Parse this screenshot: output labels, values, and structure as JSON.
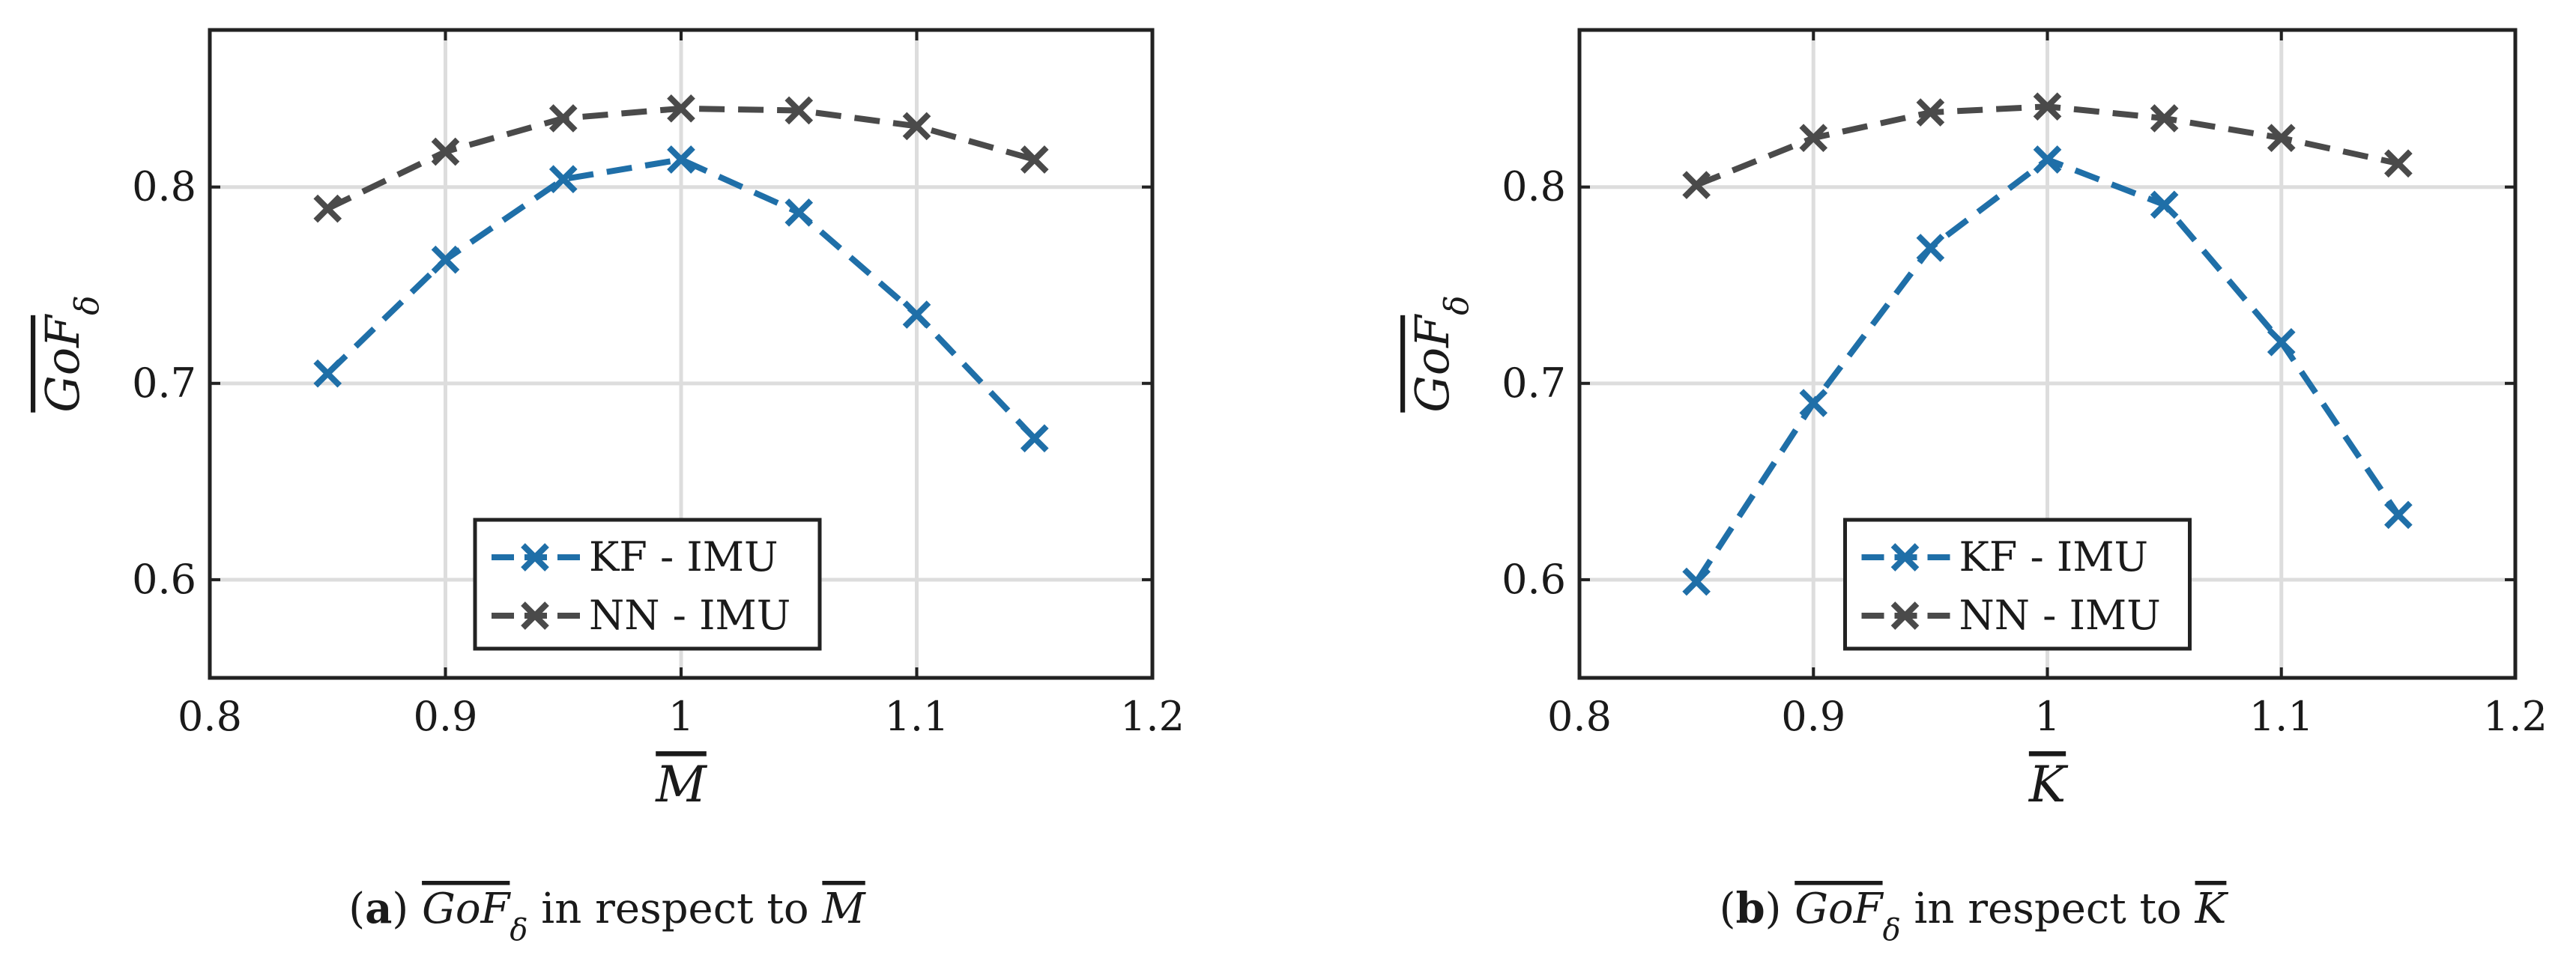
{
  "chart_data": [
    {
      "type": "line",
      "panel": "a",
      "x": [
        0.85,
        0.9,
        0.95,
        1.0,
        1.05,
        1.1,
        1.15
      ],
      "series": [
        {
          "name": "KF - IMU",
          "color": "#1f6fa8",
          "values": [
            0.705,
            0.763,
            0.804,
            0.814,
            0.787,
            0.735,
            0.672
          ]
        },
        {
          "name": "NN - IMU",
          "color": "#4a4a4a",
          "values": [
            0.789,
            0.818,
            0.835,
            0.84,
            0.839,
            0.831,
            0.814
          ]
        }
      ],
      "xlabel": "M",
      "ylabel": "GoF",
      "ylabel_sub": "δ",
      "xlim": [
        0.8,
        1.2
      ],
      "ylim": [
        0.55,
        0.88
      ],
      "xticks": [
        0.8,
        0.9,
        1.0,
        1.1,
        1.2
      ],
      "xtick_labels": [
        "0.8",
        "0.9",
        "1",
        "1.1",
        "1.2"
      ],
      "yticks": [
        0.6,
        0.7,
        0.8
      ],
      "ytick_labels": [
        "0.6",
        "0.7",
        "0.8"
      ],
      "grid": true,
      "legend_position": "bottom-center",
      "caption": {
        "label": "a",
        "overline": "GoF",
        "sub": "δ",
        "middle": " in respect to ",
        "var": "M"
      }
    },
    {
      "type": "line",
      "panel": "b",
      "x": [
        0.85,
        0.9,
        0.95,
        1.0,
        1.05,
        1.1,
        1.15
      ],
      "series": [
        {
          "name": "KF - IMU",
          "color": "#1f6fa8",
          "values": [
            0.599,
            0.69,
            0.769,
            0.814,
            0.791,
            0.721,
            0.633
          ]
        },
        {
          "name": "NN - IMU",
          "color": "#4a4a4a",
          "values": [
            0.801,
            0.825,
            0.838,
            0.841,
            0.835,
            0.825,
            0.812
          ]
        }
      ],
      "xlabel": "K",
      "ylabel": "GoF",
      "ylabel_sub": "δ",
      "xlim": [
        0.8,
        1.2
      ],
      "ylim": [
        0.55,
        0.88
      ],
      "xticks": [
        0.8,
        0.9,
        1.0,
        1.1,
        1.2
      ],
      "xtick_labels": [
        "0.8",
        "0.9",
        "1",
        "1.1",
        "1.2"
      ],
      "yticks": [
        0.6,
        0.7,
        0.8
      ],
      "ytick_labels": [
        "0.6",
        "0.7",
        "0.8"
      ],
      "grid": true,
      "legend_position": "bottom-center",
      "caption": {
        "label": "b",
        "overline": "GoF",
        "sub": "δ",
        "middle": " in respect to ",
        "var": "K"
      }
    }
  ]
}
